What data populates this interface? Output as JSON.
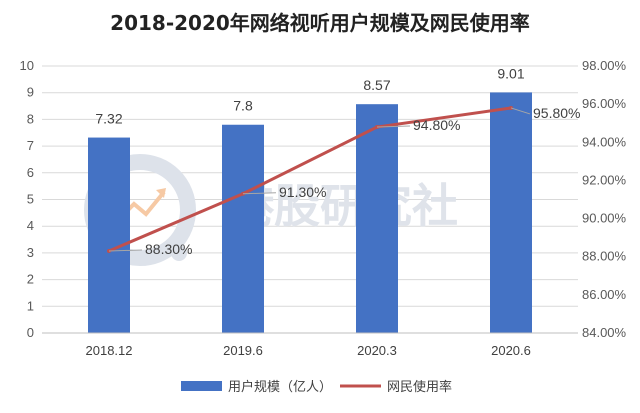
{
  "watermark": {
    "text": "港股研究社"
  },
  "chart_data": {
    "type": "bar",
    "title": "2018-2020年网络视听用户规模及网民使用率",
    "categories": [
      "2018.12",
      "2019.6",
      "2020.3",
      "2020.6"
    ],
    "series": [
      {
        "name": "用户规模（亿人）",
        "type": "bar",
        "axis": "left",
        "values": [
          7.32,
          7.8,
          8.57,
          9.01
        ],
        "labels": [
          "7.32",
          "7.8",
          "8.57",
          "9.01"
        ],
        "color": "#4472c4"
      },
      {
        "name": "网民使用率",
        "type": "line",
        "axis": "right",
        "values": [
          88.3,
          91.3,
          94.8,
          95.8
        ],
        "labels": [
          "88.30%",
          "91.30%",
          "94.80%",
          "95.80%"
        ],
        "color": "#c0504d"
      }
    ],
    "y_left": {
      "min": 0,
      "max": 10,
      "ticks": [
        "0",
        "1",
        "2",
        "3",
        "4",
        "5",
        "6",
        "7",
        "8",
        "9",
        "10"
      ]
    },
    "y_right": {
      "min": 84,
      "max": 98,
      "ticks": [
        "84.00%",
        "86.00%",
        "88.00%",
        "90.00%",
        "92.00%",
        "94.00%",
        "96.00%",
        "98.00%"
      ]
    },
    "grid": true,
    "legend_position": "bottom"
  }
}
